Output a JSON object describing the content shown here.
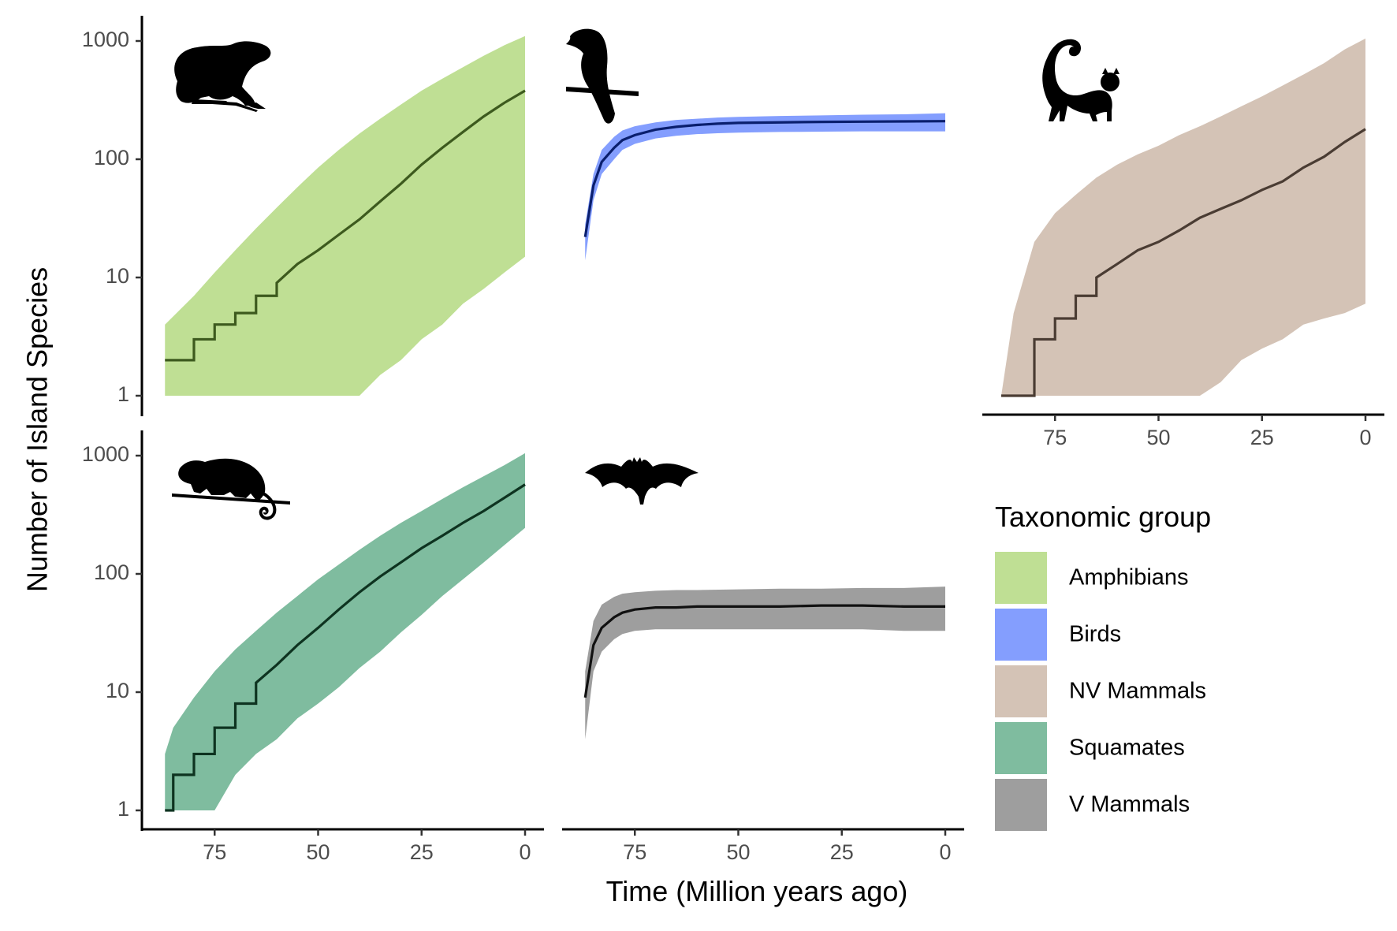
{
  "chart_data": {
    "type": "area",
    "ylabel": "Number of Island Species",
    "xlabel": "Time (Million years ago)",
    "x_scale": "reversed",
    "y_scale": "log10",
    "xlim": [
      88,
      0
    ],
    "ylim": [
      1,
      1000
    ],
    "x_ticks": [
      75,
      50,
      25,
      0
    ],
    "y_ticks": [
      1,
      10,
      100,
      1000
    ],
    "x_tick_labels": [
      "75",
      "50",
      "25",
      "0"
    ],
    "y_tick_labels": [
      "1",
      "10",
      "100",
      "1000"
    ],
    "legend": {
      "title": "Taxonomic group",
      "position": "right",
      "items": [
        {
          "label": "Amphibians",
          "color": "#bfdf94"
        },
        {
          "label": "Birds",
          "color": "#849efe"
        },
        {
          "label": "NV Mammals",
          "color": "#d4c3b6"
        },
        {
          "label": "Squamates",
          "color": "#7fbc9f"
        },
        {
          "label": "V Mammals",
          "color": "#9e9e9e"
        }
      ]
    },
    "panels": [
      {
        "group": "Amphibians",
        "icon": "frog-icon",
        "fill": "#bfdf94",
        "line_color": "#3d5a1e",
        "x": [
          87,
          80,
          75,
          70,
          65,
          60,
          55,
          50,
          45,
          40,
          35,
          30,
          25,
          20,
          15,
          10,
          5,
          0
        ],
        "median": [
          2,
          3,
          4,
          5,
          7,
          9,
          13,
          17,
          23,
          31,
          44,
          62,
          90,
          125,
          170,
          230,
          300,
          380
        ],
        "upper": [
          4,
          7,
          11,
          17,
          26,
          39,
          58,
          85,
          120,
          165,
          220,
          290,
          380,
          480,
          600,
          750,
          920,
          1100
        ],
        "lower": [
          1,
          1,
          1,
          1,
          1,
          1,
          1,
          1,
          1,
          1,
          1.5,
          2,
          3,
          4,
          6,
          8,
          11,
          15
        ]
      },
      {
        "group": "Birds",
        "icon": "bird-icon",
        "fill": "#849efe",
        "line_color": "#0a1f6e",
        "x": [
          87,
          85,
          83,
          80,
          78,
          75,
          70,
          65,
          60,
          55,
          50,
          40,
          30,
          20,
          10,
          0
        ],
        "median": [
          22,
          60,
          95,
          125,
          145,
          160,
          178,
          188,
          195,
          200,
          203,
          205,
          207,
          208,
          209,
          210
        ],
        "upper": [
          28,
          75,
          120,
          155,
          175,
          190,
          205,
          215,
          220,
          225,
          228,
          232,
          235,
          238,
          240,
          245
        ],
        "lower": [
          14,
          45,
          75,
          100,
          120,
          135,
          150,
          158,
          163,
          166,
          168,
          170,
          171,
          172,
          172,
          172
        ]
      },
      {
        "group": "NV Mammals",
        "icon": "lemur-icon",
        "fill": "#d4c3b6",
        "line_color": "#4a3c33",
        "x": [
          88,
          85,
          80,
          75,
          70,
          65,
          60,
          55,
          50,
          45,
          40,
          35,
          30,
          25,
          20,
          15,
          10,
          5,
          0
        ],
        "median": [
          1,
          1,
          3,
          4.5,
          7,
          10,
          13,
          17,
          20,
          25,
          32,
          38,
          45,
          55,
          65,
          85,
          105,
          140,
          180
        ],
        "upper": [
          1,
          5,
          20,
          35,
          50,
          70,
          90,
          110,
          130,
          160,
          190,
          230,
          280,
          340,
          420,
          520,
          650,
          850,
          1050
        ],
        "lower": [
          1,
          1,
          1,
          1,
          1,
          1,
          1,
          1,
          1,
          1,
          1,
          1.3,
          2,
          2.5,
          3,
          4,
          4.5,
          5,
          6
        ]
      },
      {
        "group": "Squamates",
        "icon": "chameleon-icon",
        "fill": "#7fbc9f",
        "line_color": "#0e3320",
        "x": [
          87,
          85,
          80,
          75,
          70,
          65,
          60,
          55,
          50,
          45,
          40,
          35,
          30,
          25,
          20,
          15,
          10,
          5,
          0
        ],
        "median": [
          1,
          2,
          3,
          5,
          8,
          12,
          17,
          25,
          35,
          50,
          70,
          95,
          125,
          165,
          210,
          270,
          340,
          440,
          570
        ],
        "upper": [
          3,
          5,
          9,
          15,
          23,
          33,
          47,
          65,
          90,
          120,
          160,
          210,
          270,
          340,
          430,
          540,
          670,
          830,
          1050
        ],
        "lower": [
          1,
          1,
          1,
          1,
          2,
          3,
          4,
          6,
          8,
          11,
          16,
          22,
          32,
          45,
          65,
          90,
          125,
          175,
          245
        ]
      },
      {
        "group": "V Mammals",
        "icon": "bat-icon",
        "fill": "#9e9e9e",
        "line_color": "#111111",
        "x": [
          87,
          85,
          83,
          80,
          78,
          75,
          70,
          65,
          60,
          50,
          40,
          30,
          20,
          10,
          0
        ],
        "median": [
          9,
          25,
          35,
          43,
          47,
          50,
          52,
          52,
          53,
          53,
          53,
          54,
          54,
          53,
          53
        ],
        "upper": [
          15,
          40,
          55,
          64,
          68,
          70,
          72,
          73,
          73,
          74,
          75,
          75,
          76,
          76,
          78
        ],
        "lower": [
          4,
          15,
          22,
          28,
          31,
          33,
          34,
          34,
          34,
          34,
          34,
          34,
          34,
          33,
          33
        ]
      }
    ]
  }
}
